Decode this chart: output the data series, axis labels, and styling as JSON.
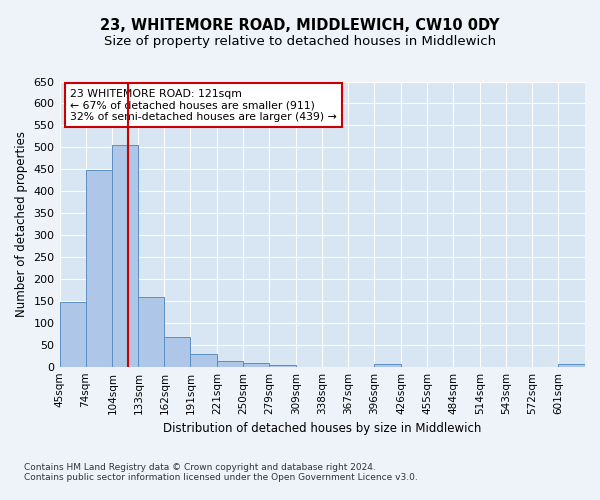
{
  "title": "23, WHITEMORE ROAD, MIDDLEWICH, CW10 0DY",
  "subtitle": "Size of property relative to detached houses in Middlewich",
  "xlabel": "Distribution of detached houses by size in Middlewich",
  "ylabel": "Number of detached properties",
  "footer_line1": "Contains HM Land Registry data © Crown copyright and database right 2024.",
  "footer_line2": "Contains public sector information licensed under the Open Government Licence v3.0.",
  "annotation_line1": "23 WHITEMORE ROAD: 121sqm",
  "annotation_line2": "← 67% of detached houses are smaller (911)",
  "annotation_line3": "32% of semi-detached houses are larger (439) →",
  "bar_edges": [
    45,
    74,
    104,
    133,
    162,
    191,
    221,
    250,
    279,
    309,
    338,
    367,
    396,
    426,
    455,
    484,
    514,
    543,
    572,
    601,
    631
  ],
  "bar_heights": [
    148,
    449,
    506,
    158,
    67,
    30,
    13,
    8,
    4,
    0,
    0,
    0,
    5,
    0,
    0,
    0,
    0,
    0,
    0,
    5
  ],
  "bar_color": "#aec6e8",
  "bar_edge_color": "#5a8fc2",
  "property_size": 121,
  "vline_color": "#cc0000",
  "ylim": [
    0,
    650
  ],
  "yticks": [
    0,
    50,
    100,
    150,
    200,
    250,
    300,
    350,
    400,
    450,
    500,
    550,
    600,
    650
  ],
  "bg_color": "#eef2f9",
  "plot_bg_color": "#d8e6f3",
  "grid_color": "#ffffff",
  "annotation_box_color": "#cc0000",
  "tick_label_size": 7.5,
  "title_fontsize": 10.5,
  "subtitle_fontsize": 9.5
}
